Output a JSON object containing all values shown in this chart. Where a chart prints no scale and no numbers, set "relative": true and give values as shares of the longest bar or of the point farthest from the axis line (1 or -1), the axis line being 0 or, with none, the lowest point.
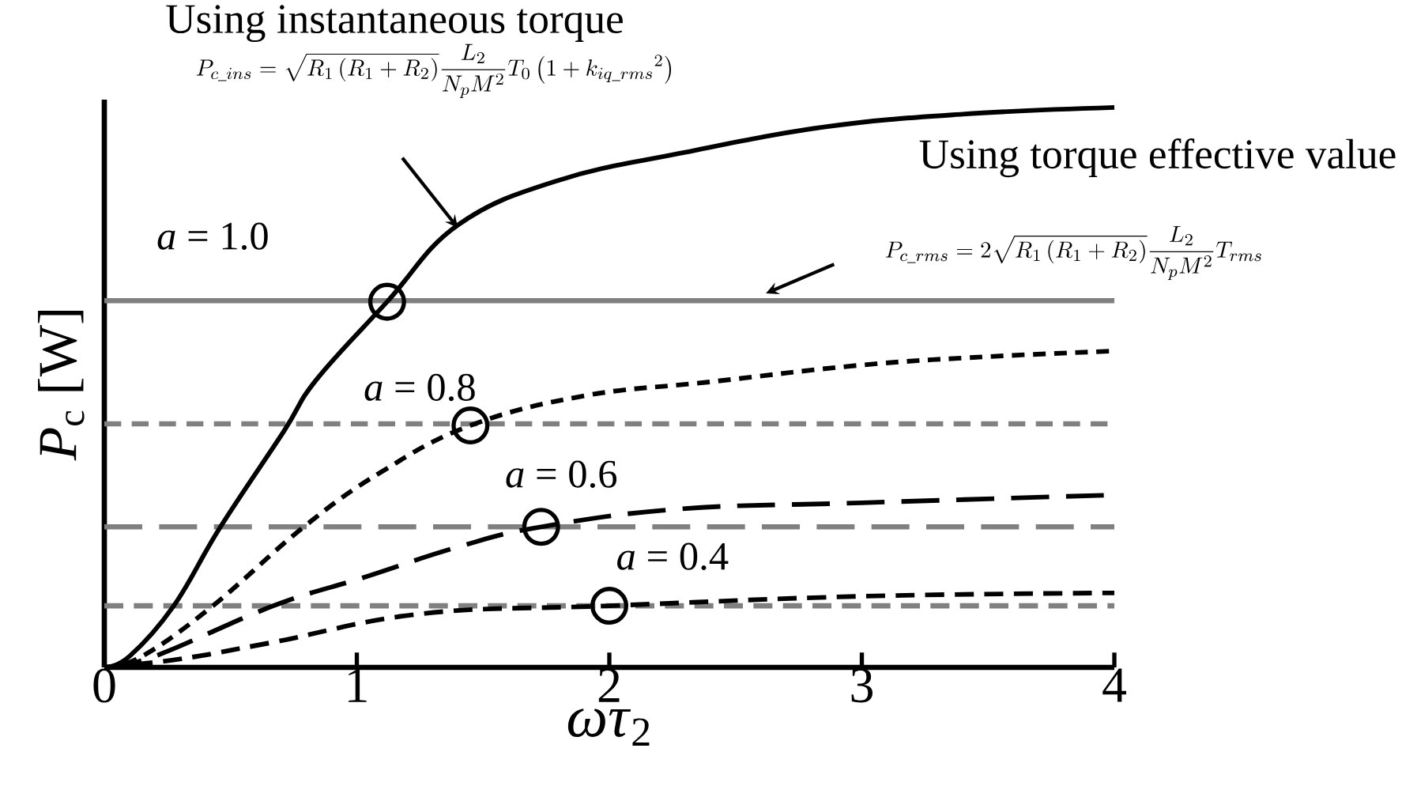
{
  "chart_data": {
    "type": "line",
    "relative": true,
    "xlabel": "*ωτ*$_{2}$",
    "ylabel": "*P*$_{c}$ [W]",
    "xlim": [
      0,
      4
    ],
    "xticks": [
      0,
      1,
      2,
      3,
      4
    ],
    "grid": false,
    "marker": "none",
    "series": [
      {
        "color": "#000000",
        "line_style": "solid",
        "x": [
          0,
          0.1,
          0.275,
          0.46,
          0.71,
          0.84,
          1.12,
          1.4,
          1.8,
          2.3,
          2.85,
          3.4,
          4
        ],
        "values": [
          0,
          0.02,
          0.11,
          0.251,
          0.421,
          0.514,
          0.653,
          0.79,
          0.87,
          0.92,
          0.965,
          0.988,
          1.0
        ]
      },
      {
        "color": "#000000",
        "line_style": "dashed",
        "x": [
          0,
          0.15,
          0.43,
          0.79,
          1.1,
          1.45,
          1.9,
          2.4,
          3,
          3.5,
          4
        ],
        "values": [
          0,
          0.02,
          0.11,
          0.251,
          0.35,
          0.432,
          0.485,
          0.51,
          0.54,
          0.555,
          0.565
        ]
      },
      {
        "color": "#000000",
        "line_style": "dashed",
        "x": [
          0,
          0.2,
          0.67,
          1.03,
          1.4,
          1.73,
          2.28,
          3,
          4
        ],
        "values": [
          0,
          0.02,
          0.11,
          0.161,
          0.215,
          0.251,
          0.283,
          0.294,
          0.308
        ]
      },
      {
        "color": "#000000",
        "line_style": "dashed",
        "x": [
          0,
          0.3,
          0.67,
          1.26,
          2,
          3,
          4
        ],
        "values": [
          0,
          0.015,
          0.045,
          0.096,
          0.11,
          0.127,
          0.133
        ]
      },
      {
        "type": "scatter",
        "marker": "circle",
        "color": "#000000",
        "x": [
          1.12,
          1.45,
          1.73,
          2.0
        ],
        "values": [
          0.653,
          0.432,
          0.251,
          0.11
        ]
      }
    ],
    "ref_lines": [
      {
        "axis": "y",
        "value": 0.655,
        "color": "#808080",
        "line_style": "solid"
      },
      {
        "axis": "y",
        "value": 0.435,
        "color": "#808080",
        "line_style": "dashed"
      },
      {
        "axis": "y",
        "value": 0.251,
        "color": "#808080",
        "line_style": "dashed"
      },
      {
        "axis": "y",
        "value": 0.11,
        "color": "#808080",
        "line_style": "dashed"
      }
    ],
    "annotations": [
      "Using instantaneous torque",
      "P_{c\\_ins}=\\sqrt{R_1\\left(R_1+R_2\\right)}\\frac{L_2}{N_pM^2}T_0\\left(1+{k_{iq\\_rms}}^2\\right)",
      "Using torque effective value",
      "P_{c\\_rms}=2\\sqrt{R_1\\left(R_1+R_2\\right)}\\frac{L_2}{N_pM^2}T_{rms}",
      "*a* = 1.0",
      "*a* = 0.8",
      "*a* = 0.6",
      "*a* = 0.4"
    ]
  }
}
